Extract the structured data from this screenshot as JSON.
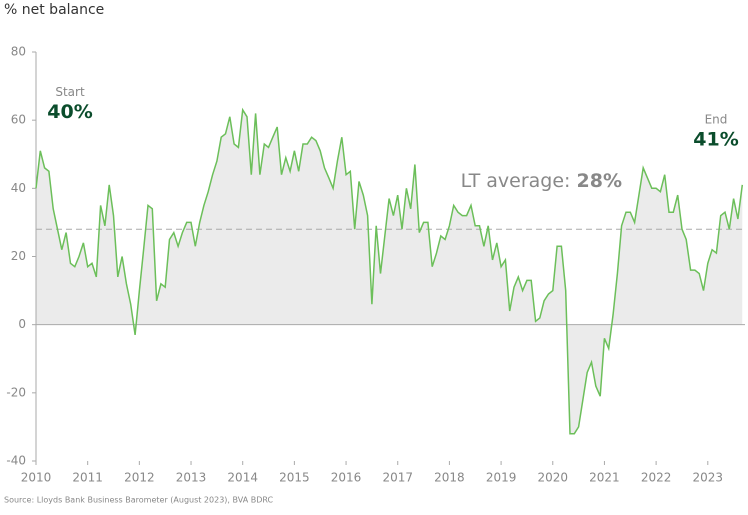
{
  "chart_data": {
    "type": "area-line",
    "title": "% net balance",
    "source": "Source: Lloyds Bank Business Barometer (August 2023), BVA BDRC",
    "color": "#6cbf5a",
    "area_color": "#ebebeb",
    "xlim": [
      2010,
      2023.72
    ],
    "xticks": [
      2010,
      2011,
      2012,
      2013,
      2014,
      2015,
      2016,
      2017,
      2018,
      2019,
      2020,
      2021,
      2022,
      2023
    ],
    "ylim": [
      -40,
      80
    ],
    "yticks": [
      -40,
      -20,
      0,
      20,
      40,
      60,
      80
    ],
    "x": [
      2010,
      2010.083,
      2010.167,
      2010.25,
      2010.333,
      2010.417,
      2010.5,
      2010.583,
      2010.667,
      2010.75,
      2010.833,
      2010.917,
      2011,
      2011.083,
      2011.167,
      2011.25,
      2011.333,
      2011.417,
      2011.5,
      2011.583,
      2011.667,
      2011.75,
      2011.833,
      2011.917,
      2012,
      2012.083,
      2012.167,
      2012.25,
      2012.333,
      2012.417,
      2012.5,
      2012.583,
      2012.667,
      2012.75,
      2012.833,
      2012.917,
      2013,
      2013.083,
      2013.167,
      2013.25,
      2013.333,
      2013.417,
      2013.5,
      2013.583,
      2013.667,
      2013.75,
      2013.833,
      2013.917,
      2014,
      2014.083,
      2014.167,
      2014.25,
      2014.333,
      2014.417,
      2014.5,
      2014.583,
      2014.667,
      2014.75,
      2014.833,
      2014.917,
      2015,
      2015.083,
      2015.167,
      2015.25,
      2015.333,
      2015.417,
      2015.5,
      2015.583,
      2015.667,
      2015.75,
      2015.833,
      2015.917,
      2016,
      2016.083,
      2016.167,
      2016.25,
      2016.333,
      2016.417,
      2016.5,
      2016.583,
      2016.667,
      2016.75,
      2016.833,
      2016.917,
      2017,
      2017.083,
      2017.167,
      2017.25,
      2017.333,
      2017.417,
      2017.5,
      2017.583,
      2017.667,
      2017.75,
      2017.833,
      2017.917,
      2018,
      2018.083,
      2018.167,
      2018.25,
      2018.333,
      2018.417,
      2018.5,
      2018.583,
      2018.667,
      2018.75,
      2018.833,
      2018.917,
      2019,
      2019.083,
      2019.167,
      2019.25,
      2019.333,
      2019.417,
      2019.5,
      2019.583,
      2019.667,
      2019.75,
      2019.833,
      2019.917,
      2020,
      2020.083,
      2020.167,
      2020.25,
      2020.333,
      2020.417,
      2020.5,
      2020.583,
      2020.667,
      2020.75,
      2020.833,
      2020.917,
      2021,
      2021.083,
      2021.167,
      2021.25,
      2021.333,
      2021.417,
      2021.5,
      2021.583,
      2021.667,
      2021.75,
      2021.833,
      2021.917,
      2022,
      2022.083,
      2022.167,
      2022.25,
      2022.333,
      2022.417,
      2022.5,
      2022.583,
      2022.667,
      2022.75,
      2022.833,
      2022.917,
      2023,
      2023.083,
      2023.167,
      2023.25,
      2023.333,
      2023.417,
      2023.5,
      2023.583,
      2023.667
    ],
    "values": [
      40,
      51,
      46,
      45,
      34,
      28,
      22,
      27,
      18,
      17,
      20,
      24,
      17,
      18,
      14,
      35,
      29,
      41,
      32,
      14,
      20,
      12,
      6,
      -3,
      10,
      22,
      35,
      34,
      7,
      12,
      11,
      25,
      27,
      23,
      27,
      30,
      30,
      23,
      30,
      35,
      39,
      44,
      48,
      55,
      56,
      61,
      53,
      52,
      63,
      61,
      44,
      62,
      44,
      53,
      52,
      55,
      58,
      44,
      49,
      45,
      51,
      45,
      53,
      53,
      55,
      54,
      51,
      46,
      43,
      40,
      48,
      55,
      44,
      45,
      28,
      42,
      38,
      32,
      6,
      29,
      15,
      26,
      37,
      32,
      38,
      28,
      40,
      34,
      47,
      27,
      30,
      30,
      17,
      21,
      26,
      25,
      29,
      35,
      33,
      32,
      32,
      35,
      29,
      29,
      23,
      29,
      19,
      24,
      17,
      19,
      4,
      11,
      14,
      10,
      13,
      13,
      1,
      2,
      7,
      9,
      10,
      23,
      23,
      10,
      -32,
      -32,
      -30,
      -22,
      -14,
      -11,
      -18,
      -21,
      -4,
      -7,
      3,
      15,
      29,
      33,
      33,
      30,
      38,
      46,
      43,
      40,
      40,
      39,
      44,
      33,
      33,
      38,
      28,
      25,
      16,
      16,
      15,
      10,
      18,
      22,
      21,
      32,
      33,
      28,
      37,
      31,
      41
    ],
    "annotations": [
      {
        "text": "Start",
        "value": 40,
        "value_label": "40%"
      },
      {
        "text": "End",
        "value": 41,
        "value_label": "41%"
      }
    ],
    "average": {
      "text": "LT average:",
      "value": 28,
      "value_label": "28%"
    }
  }
}
